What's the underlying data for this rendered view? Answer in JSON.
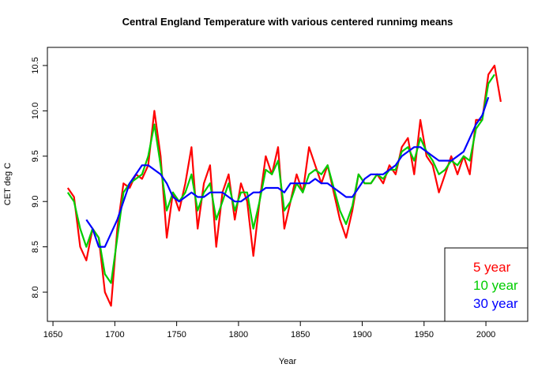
{
  "chart_data": {
    "type": "line",
    "title": "Central England Temperature with various centered runnimg means",
    "x_label": "Year",
    "y_label": "CET deg C",
    "x": [
      1662,
      1667,
      1672,
      1677,
      1682,
      1687,
      1692,
      1697,
      1702,
      1707,
      1712,
      1717,
      1722,
      1727,
      1732,
      1737,
      1742,
      1747,
      1752,
      1757,
      1762,
      1767,
      1772,
      1777,
      1782,
      1787,
      1792,
      1797,
      1802,
      1807,
      1812,
      1817,
      1822,
      1827,
      1832,
      1837,
      1842,
      1847,
      1852,
      1857,
      1862,
      1867,
      1872,
      1877,
      1882,
      1887,
      1892,
      1897,
      1902,
      1907,
      1912,
      1917,
      1922,
      1927,
      1932,
      1937,
      1942,
      1947,
      1952,
      1957,
      1962,
      1967,
      1972,
      1977,
      1982,
      1987,
      1992,
      1997,
      2002,
      2007,
      2012
    ],
    "series": [
      {
        "name": "5 year",
        "color": "#ff0000",
        "values": [
          9.15,
          9.05,
          8.5,
          8.35,
          8.7,
          8.6,
          8.0,
          7.85,
          8.7,
          9.2,
          9.15,
          9.3,
          9.25,
          9.4,
          10.0,
          9.5,
          8.6,
          9.1,
          8.9,
          9.2,
          9.6,
          8.7,
          9.2,
          9.4,
          8.5,
          9.1,
          9.3,
          8.8,
          9.2,
          9.0,
          8.4,
          9.0,
          9.5,
          9.3,
          9.6,
          8.7,
          9.0,
          9.3,
          9.1,
          9.6,
          9.4,
          9.2,
          9.4,
          9.1,
          8.8,
          8.6,
          8.9,
          9.3,
          9.2,
          9.2,
          9.3,
          9.2,
          9.4,
          9.3,
          9.6,
          9.7,
          9.3,
          9.9,
          9.5,
          9.4,
          9.1,
          9.3,
          9.5,
          9.3,
          9.5,
          9.3,
          9.9,
          9.9,
          10.4,
          10.5,
          10.1
        ]
      },
      {
        "name": "10 year",
        "color": "#00cd00",
        "values": [
          9.1,
          9.0,
          8.7,
          8.5,
          8.7,
          8.6,
          8.2,
          8.1,
          8.6,
          9.1,
          9.2,
          9.25,
          9.3,
          9.5,
          9.85,
          9.4,
          8.9,
          9.1,
          9.0,
          9.1,
          9.3,
          8.9,
          9.1,
          9.2,
          8.8,
          9.0,
          9.2,
          8.9,
          9.1,
          9.1,
          8.7,
          9.0,
          9.35,
          9.3,
          9.45,
          8.9,
          9.0,
          9.2,
          9.1,
          9.3,
          9.35,
          9.3,
          9.4,
          9.15,
          8.9,
          8.75,
          8.95,
          9.3,
          9.2,
          9.2,
          9.3,
          9.25,
          9.35,
          9.35,
          9.55,
          9.6,
          9.45,
          9.7,
          9.55,
          9.45,
          9.3,
          9.35,
          9.45,
          9.4,
          9.5,
          9.45,
          9.8,
          9.9,
          10.3,
          10.4,
          null
        ]
      },
      {
        "name": "30 year",
        "color": "#0000ff",
        "values": [
          null,
          null,
          null,
          8.8,
          8.7,
          8.5,
          8.5,
          8.65,
          8.8,
          9.0,
          9.2,
          9.3,
          9.4,
          9.4,
          9.35,
          9.3,
          9.2,
          9.05,
          9.0,
          9.05,
          9.1,
          9.05,
          9.05,
          9.1,
          9.1,
          9.1,
          9.05,
          9.0,
          9.0,
          9.05,
          9.1,
          9.1,
          9.15,
          9.15,
          9.15,
          9.1,
          9.2,
          9.2,
          9.2,
          9.2,
          9.25,
          9.2,
          9.2,
          9.15,
          9.1,
          9.05,
          9.05,
          9.15,
          9.25,
          9.3,
          9.3,
          9.3,
          9.35,
          9.4,
          9.5,
          9.55,
          9.6,
          9.6,
          9.55,
          9.5,
          9.45,
          9.45,
          9.45,
          9.5,
          9.55,
          9.7,
          9.85,
          9.95,
          10.15,
          null,
          null
        ]
      }
    ],
    "xlim": [
      1645.5,
      2033.8
    ],
    "ylim": [
      7.678,
      10.7
    ],
    "xticks": [
      1650,
      1700,
      1750,
      1800,
      1850,
      1900,
      1950,
      2000
    ],
    "yticks": [
      {
        "value": 8,
        "label": "8.0"
      },
      8.5,
      {
        "value": 9,
        "label": "9.0"
      },
      9.5,
      {
        "value": 10,
        "label": "10.0"
      },
      10.5
    ],
    "legend": "bottomright"
  }
}
